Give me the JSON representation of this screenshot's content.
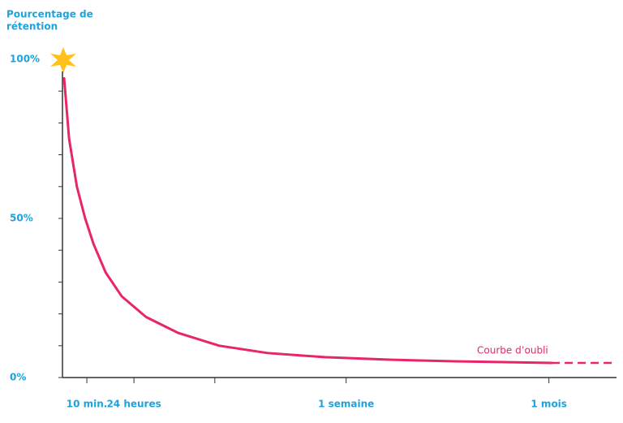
{
  "chart_data": {
    "type": "line",
    "title": [
      "Pourcentage de",
      "rétention"
    ],
    "annotation": "Courbe d’oubli",
    "xlim": [
      0,
      100
    ],
    "ylim": [
      0,
      100
    ],
    "xticks": [
      {
        "value": 4.4,
        "label": "10 min."
      },
      {
        "value": 12.9,
        "label": "24 heures"
      },
      {
        "value": 27.5,
        "label": null
      },
      {
        "value": 51.2,
        "label": "1 semaine"
      },
      {
        "value": 87.8,
        "label": "1 mois"
      }
    ],
    "yticks": [
      {
        "value": 0,
        "label": "0%"
      },
      {
        "value": 10,
        "label": null
      },
      {
        "value": 20,
        "label": null
      },
      {
        "value": 30,
        "label": null
      },
      {
        "value": 40,
        "label": null
      },
      {
        "value": 50,
        "label": "50%"
      },
      {
        "value": 60,
        "label": null
      },
      {
        "value": 70,
        "label": null
      },
      {
        "value": 80,
        "label": null
      },
      {
        "value": 90,
        "label": null
      },
      {
        "value": 100,
        "label": "100%"
      }
    ],
    "series": [
      {
        "color": "#e8246b",
        "style": "solid",
        "x": [
          0.3,
          1.2,
          2.6,
          4.1,
          5.6,
          7.8,
          10.7,
          15.1,
          20.9,
          28.3,
          37.0,
          47.3,
          59.0,
          70.7,
          88.3
        ],
        "values": [
          94,
          75,
          60,
          50,
          42,
          33,
          25.5,
          19,
          14,
          10,
          7.7,
          6.4,
          5.6,
          5.1,
          4.6
        ]
      },
      {
        "color": "#e8246b",
        "style": "dashed",
        "x": [
          88.3,
          100
        ],
        "values": [
          4.6,
          4.6
        ]
      }
    ]
  }
}
